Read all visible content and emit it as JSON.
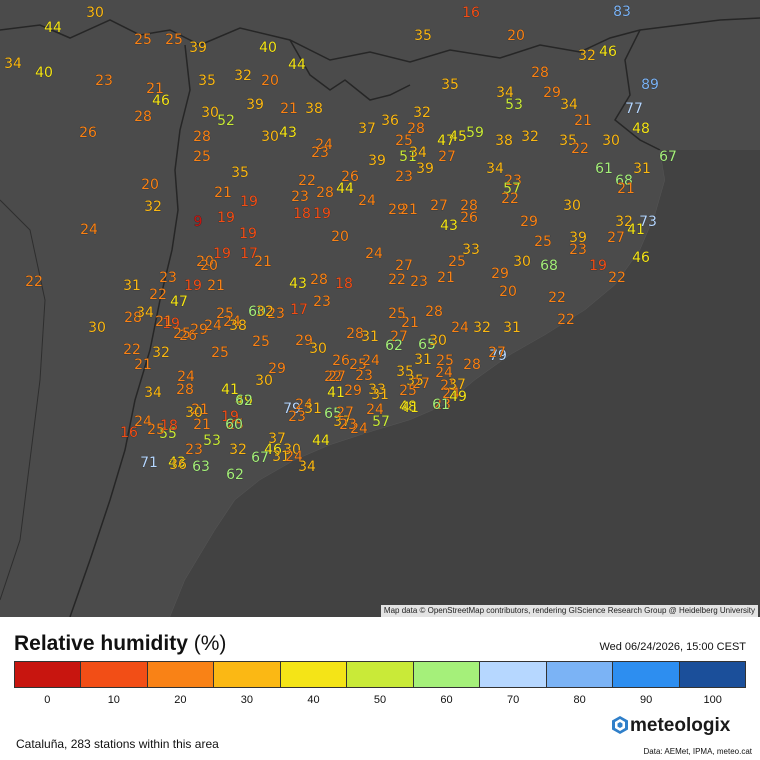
{
  "map": {
    "attribution": "Map data © OpenStreetMap contributors, rendering GIScience Research Group @ Heidelberg University",
    "station_values": [
      "30",
      "16",
      "83",
      "44",
      "25",
      "25",
      "39",
      "40",
      "35",
      "20",
      "32",
      "46",
      "34",
      "40",
      "23",
      "21",
      "35",
      "32",
      "20",
      "44",
      "35",
      "28",
      "89",
      "46",
      "39",
      "21",
      "38",
      "34",
      "53",
      "29",
      "34",
      "77",
      "28",
      "30",
      "52",
      "30",
      "43",
      "37",
      "36",
      "32",
      "21",
      "48",
      "26",
      "28",
      "24",
      "25",
      "28",
      "47",
      "45",
      "59",
      "38",
      "32",
      "35",
      "30",
      "67",
      "25",
      "23",
      "39",
      "51",
      "34",
      "27",
      "22",
      "35",
      "26",
      "34",
      "23",
      "39",
      "61",
      "31",
      "20",
      "22",
      "28",
      "23",
      "68",
      "32",
      "44",
      "21",
      "23",
      "57",
      "21",
      "19",
      "24",
      "22",
      "18",
      "19",
      "29",
      "21",
      "27",
      "28",
      "30",
      "9",
      "19",
      "26",
      "29",
      "32",
      "73",
      "24",
      "20",
      "43",
      "25",
      "39",
      "27",
      "41",
      "19",
      "17",
      "19",
      "20",
      "24",
      "33",
      "25",
      "46",
      "20",
      "21",
      "27",
      "23",
      "29",
      "30",
      "68",
      "23",
      "19",
      "22",
      "22",
      "31",
      "43",
      "21",
      "23",
      "19",
      "21",
      "28",
      "18",
      "22",
      "47",
      "20",
      "22",
      "22",
      "17",
      "23",
      "28",
      "34",
      "25",
      "60",
      "23",
      "19",
      "29",
      "28",
      "22",
      "21",
      "26",
      "24",
      "30",
      "24",
      "38",
      "31",
      "25",
      "32",
      "25",
      "29",
      "21",
      "24",
      "32",
      "22",
      "32",
      "25",
      "25",
      "30",
      "28",
      "31",
      "27",
      "62",
      "65",
      "30",
      "31",
      "26",
      "79",
      "27",
      "25",
      "24",
      "21",
      "28",
      "25",
      "24",
      "24",
      "22",
      "23",
      "35",
      "35",
      "29",
      "25",
      "27",
      "41",
      "28",
      "34",
      "49",
      "25",
      "37",
      "24",
      "33",
      "41",
      "31",
      "27",
      "29",
      "49",
      "62",
      "48",
      "30",
      "79",
      "24",
      "21",
      "19",
      "25",
      "23",
      "21",
      "24",
      "31",
      "65",
      "37",
      "24",
      "57",
      "23",
      "41",
      "60",
      "61",
      "27",
      "23",
      "30",
      "55",
      "24",
      "18",
      "16",
      "25",
      "53",
      "23",
      "32",
      "46",
      "37",
      "34",
      "44",
      "30",
      "67",
      "71",
      "43",
      "36",
      "63",
      "62",
      "31",
      "24"
    ]
  },
  "legend": {
    "title": "Relative humidity",
    "unit": "(%)",
    "timestamp": "Wed 06/24/2026, 15:00 CEST",
    "colors": [
      "#c8150f",
      "#f24e16",
      "#f98216",
      "#fbb814",
      "#f4e417",
      "#c9ea38",
      "#a5f07a",
      "#b6d7ff",
      "#7bb3f5",
      "#2d8ef0",
      "#1b4f9a"
    ],
    "ticks": [
      "0",
      "10",
      "20",
      "30",
      "40",
      "50",
      "60",
      "70",
      "80",
      "90",
      "100"
    ]
  },
  "footer": {
    "stations": "Cataluña, 283 stations within this area",
    "brand": "meteologix",
    "sources": "Data: AEMet, IPMA, meteo.cat"
  }
}
